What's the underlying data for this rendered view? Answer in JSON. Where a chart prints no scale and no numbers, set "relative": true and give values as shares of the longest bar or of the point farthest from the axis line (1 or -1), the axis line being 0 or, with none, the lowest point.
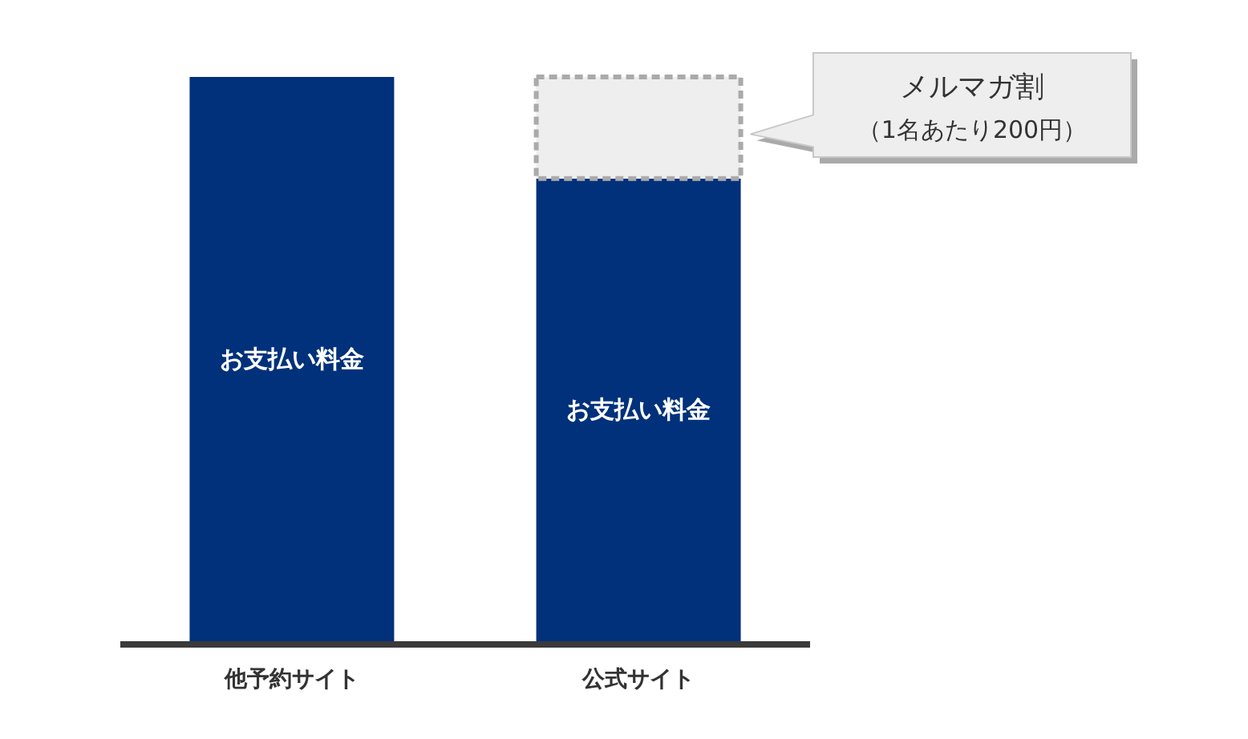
{
  "chart_data": {
    "type": "bar",
    "stacked": true,
    "relative": true,
    "categories": [
      "他予約サイト",
      "公式サイト"
    ],
    "series": [
      {
        "name": "お支払い料金",
        "color": "#00317a",
        "values": [
          1,
          0.82
        ]
      },
      {
        "color": "#eeeeee",
        "line_style": "dashed",
        "values": [
          null,
          0.18
        ]
      }
    ],
    "annotations": [
      "メルマガ割",
      "（1名あたり200円）"
    ]
  }
}
